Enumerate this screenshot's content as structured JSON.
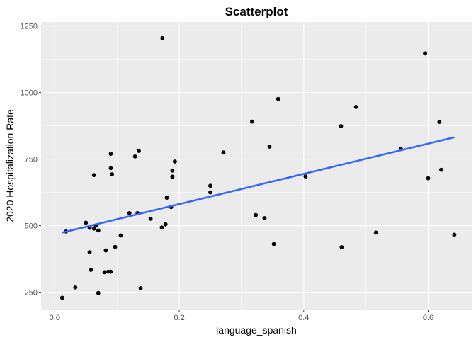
{
  "chart_data": {
    "type": "scatter",
    "title": "Scatterplot",
    "xlabel": "language_spanish",
    "ylabel": "2020 Hospitalization Rate",
    "xlim": [
      -0.022,
      0.67
    ],
    "ylim": [
      185,
      1265
    ],
    "x_ticks": [
      0.0,
      0.2,
      0.4,
      0.6
    ],
    "x_tick_labels": [
      "0.0",
      "0.2",
      "0.4",
      "0.6"
    ],
    "y_ticks": [
      250,
      500,
      750,
      1000,
      1250
    ],
    "y_tick_labels": [
      "250",
      "500",
      "750",
      "1000",
      "1250"
    ],
    "grid": true,
    "legend": "none",
    "points": {
      "x": [
        0.012,
        0.018,
        0.033,
        0.05,
        0.056,
        0.056,
        0.058,
        0.063,
        0.063,
        0.066,
        0.07,
        0.07,
        0.08,
        0.082,
        0.086,
        0.09,
        0.09,
        0.09,
        0.092,
        0.097,
        0.106,
        0.12,
        0.129,
        0.133,
        0.135,
        0.138,
        0.154,
        0.172,
        0.173,
        0.178,
        0.18,
        0.187,
        0.189,
        0.189,
        0.193,
        0.25,
        0.25,
        0.271,
        0.317,
        0.323,
        0.337,
        0.345,
        0.352,
        0.359,
        0.403,
        0.46,
        0.461,
        0.484,
        0.516,
        0.556,
        0.595,
        0.6,
        0.618,
        0.621,
        0.642
      ],
      "y": [
        229,
        478,
        268,
        511,
        400,
        492,
        334,
        690,
        489,
        500,
        247,
        482,
        325,
        407,
        327,
        770,
        716,
        327,
        693,
        420,
        463,
        547,
        760,
        547,
        781,
        265,
        526,
        493,
        1204,
        505,
        605,
        570,
        707,
        684,
        741,
        650,
        625,
        775,
        891,
        540,
        528,
        797,
        431,
        976,
        685,
        874,
        419,
        946,
        474,
        788,
        1147,
        678,
        890,
        710,
        466
      ]
    },
    "trend_line": {
      "method": "linear",
      "x": [
        0.012,
        0.642
      ],
      "y": [
        474,
        832
      ]
    },
    "colors": {
      "panel": "#ebebeb",
      "grid_major": "#ffffff",
      "points": "#000000",
      "trend_line": "#3366ff"
    }
  }
}
